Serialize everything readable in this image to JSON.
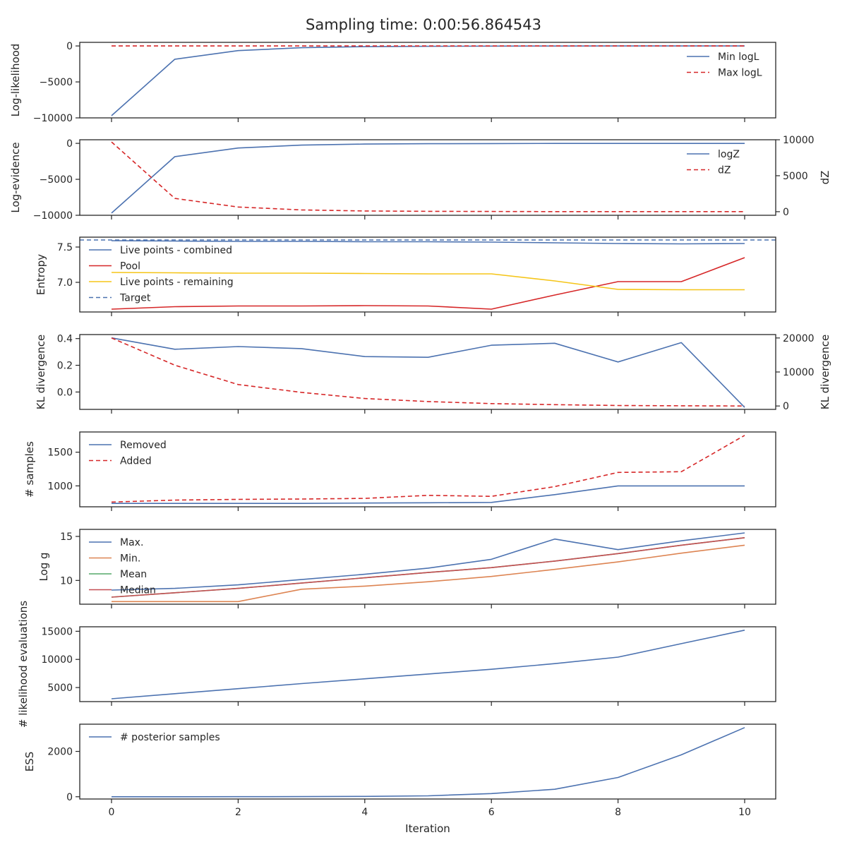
{
  "title": "Sampling time: 0:00:56.864543",
  "xlabel": "Iteration",
  "x_ticks": [
    0,
    2,
    4,
    6,
    8,
    10
  ],
  "colors": {
    "blue": "#4c72b0",
    "red": "#d62728",
    "yellow": "#f5c518",
    "orange": "#dd8452",
    "green": "#55a868",
    "brown_red": "#c44e52",
    "axis": "#262626"
  },
  "chart_data": [
    {
      "type": "line",
      "ylabel": "Log-likelihood",
      "ylim": [
        -10000,
        500
      ],
      "yticks": [
        0,
        -5000,
        -10000
      ],
      "ytick_labels": [
        "0",
        "−5000",
        "−10000"
      ],
      "legend_loc": "upper-right",
      "series": [
        {
          "name": "Min logL",
          "style": "solid",
          "color": "#4c72b0",
          "x": [
            0,
            1,
            2,
            3,
            4,
            5,
            6,
            7,
            8,
            9,
            10
          ],
          "y": [
            -9700,
            -1850,
            -650,
            -250,
            -100,
            -50,
            -20,
            -10,
            -5,
            -3,
            -1
          ]
        },
        {
          "name": "Max logL",
          "style": "dashed",
          "color": "#d62728",
          "x": [
            0,
            1,
            2,
            3,
            4,
            5,
            6,
            7,
            8,
            9,
            10
          ],
          "y": [
            -5,
            -3,
            -2,
            -2,
            -1,
            -1,
            -1,
            -1,
            -1,
            -1,
            -1
          ]
        }
      ]
    },
    {
      "type": "line",
      "ylabel": "Log-evidence",
      "ylabel_right": "dZ",
      "ylim": [
        -10000,
        500
      ],
      "yticks": [
        0,
        -5000,
        -10000
      ],
      "ytick_labels": [
        "0",
        "−5000",
        "−10000"
      ],
      "ylim_right": [
        -500,
        10000
      ],
      "yticks_right": [
        10000,
        5000,
        0
      ],
      "ytick_labels_right": [
        "10000",
        "5000",
        "0"
      ],
      "legend_loc": "upper-right",
      "series": [
        {
          "name": "logZ",
          "style": "solid",
          "color": "#4c72b0",
          "axis": "left",
          "x": [
            0,
            1,
            2,
            3,
            4,
            5,
            6,
            7,
            8,
            9,
            10
          ],
          "y": [
            -9700,
            -1850,
            -650,
            -250,
            -100,
            -50,
            -25,
            -15,
            -10,
            -8,
            -7
          ]
        },
        {
          "name": "dZ",
          "style": "dashed",
          "color": "#d62728",
          "axis": "right",
          "x": [
            0,
            1,
            2,
            3,
            4,
            5,
            6,
            7,
            8,
            9,
            10
          ],
          "y": [
            9700,
            1850,
            650,
            250,
            100,
            50,
            25,
            15,
            10,
            8,
            7
          ]
        }
      ]
    },
    {
      "type": "line",
      "ylabel": "Entropy",
      "ylim": [
        6.58,
        7.64
      ],
      "yticks": [
        7.5,
        7.0
      ],
      "ytick_labels": [
        "7.5",
        "7.0"
      ],
      "legend_loc": "upper-left",
      "series": [
        {
          "name": "Live points - combined",
          "style": "solid",
          "color": "#4c72b0",
          "x": [
            0,
            1,
            2,
            3,
            4,
            5,
            6,
            7,
            8,
            9,
            10
          ],
          "y": [
            7.59,
            7.585,
            7.58,
            7.58,
            7.575,
            7.575,
            7.57,
            7.56,
            7.55,
            7.545,
            7.55
          ]
        },
        {
          "name": "Pool",
          "style": "solid",
          "color": "#d62728",
          "x": [
            0,
            1,
            2,
            3,
            4,
            5,
            6,
            7,
            8,
            9,
            10
          ],
          "y": [
            6.62,
            6.655,
            6.665,
            6.665,
            6.67,
            6.665,
            6.62,
            6.82,
            7.01,
            7.01,
            7.35
          ]
        },
        {
          "name": "Live points - remaining",
          "style": "solid",
          "color": "#f5c518",
          "x": [
            0,
            1,
            2,
            3,
            4,
            5,
            6,
            7,
            8,
            9,
            10
          ],
          "y": [
            7.14,
            7.135,
            7.13,
            7.13,
            7.125,
            7.12,
            7.12,
            7.02,
            6.9,
            6.895,
            6.895
          ]
        },
        {
          "name": "Target",
          "style": "dashed",
          "color": "#4c72b0",
          "hline": 7.6
        }
      ]
    },
    {
      "type": "line",
      "ylabel": "KL divergence",
      "ylabel_right": "KL divergence",
      "ylim": [
        -0.13,
        0.43
      ],
      "yticks": [
        0.4,
        0.2,
        0.0
      ],
      "ytick_labels": [
        "0.4",
        "0.2",
        "0.0"
      ],
      "ylim_right": [
        -1000,
        21000
      ],
      "yticks_right": [
        20000,
        10000,
        0
      ],
      "ytick_labels_right": [
        "20000",
        "10000",
        "0"
      ],
      "legend_loc": "none",
      "series": [
        {
          "name": "",
          "style": "solid",
          "color": "#4c72b0",
          "axis": "left",
          "x": [
            0,
            1,
            2,
            3,
            4,
            5,
            6,
            7,
            8,
            9,
            10
          ],
          "y": [
            0.405,
            0.32,
            0.34,
            0.325,
            0.265,
            0.26,
            0.35,
            0.365,
            0.225,
            0.37,
            -0.115
          ]
        },
        {
          "name": "",
          "style": "dashed",
          "color": "#d62728",
          "axis": "right",
          "x": [
            0,
            1,
            2,
            3,
            4,
            5,
            6,
            7,
            8,
            9,
            10
          ],
          "y": [
            20000,
            12000,
            6300,
            4000,
            2200,
            1300,
            700,
            400,
            150,
            50,
            0
          ]
        }
      ]
    },
    {
      "type": "line",
      "ylabel": "# samples",
      "ylim": [
        690,
        1800
      ],
      "yticks": [
        1500,
        1000
      ],
      "ytick_labels": [
        "1500",
        "1000"
      ],
      "legend_loc": "upper-left",
      "series": [
        {
          "name": "Removed",
          "style": "solid",
          "color": "#4c72b0",
          "x": [
            0,
            1,
            2,
            3,
            4,
            5,
            6,
            7,
            8,
            9,
            10
          ],
          "y": [
            740,
            740,
            740,
            740,
            745,
            750,
            755,
            870,
            1000,
            1000,
            1000
          ]
        },
        {
          "name": "Added",
          "style": "dashed",
          "color": "#d62728",
          "x": [
            0,
            1,
            2,
            3,
            4,
            5,
            6,
            7,
            8,
            9,
            10
          ],
          "y": [
            760,
            790,
            800,
            805,
            815,
            860,
            845,
            990,
            1200,
            1210,
            1750
          ]
        }
      ]
    },
    {
      "type": "line",
      "ylabel": "Log g",
      "ylim": [
        7.3,
        15.8
      ],
      "yticks": [
        15,
        10
      ],
      "ytick_labels": [
        "15",
        "10"
      ],
      "legend_loc": "upper-left",
      "series": [
        {
          "name": "Max.",
          "style": "solid",
          "color": "#4c72b0",
          "x": [
            0,
            1,
            2,
            3,
            4,
            5,
            6,
            7,
            8,
            9,
            10
          ],
          "y": [
            8.9,
            9.1,
            9.5,
            10.1,
            10.7,
            11.4,
            12.4,
            14.7,
            13.5,
            14.5,
            15.4
          ]
        },
        {
          "name": "Min.",
          "style": "solid",
          "color": "#dd8452",
          "x": [
            0,
            1,
            2,
            3,
            4,
            5,
            6,
            7,
            8,
            9,
            10
          ],
          "y": [
            7.6,
            7.6,
            7.6,
            9.0,
            9.35,
            9.85,
            10.45,
            11.25,
            12.1,
            13.1,
            14.0
          ]
        },
        {
          "name": "Mean",
          "style": "solid",
          "color": "#55a868",
          "x": [
            0,
            1,
            2,
            3,
            4,
            5,
            6,
            7,
            8,
            9,
            10
          ],
          "y": [
            8.1,
            8.6,
            9.1,
            9.7,
            10.3,
            10.9,
            11.45,
            12.2,
            13.05,
            14.0,
            14.85
          ]
        },
        {
          "name": "Median",
          "style": "solid",
          "color": "#c44e52",
          "x": [
            0,
            1,
            2,
            3,
            4,
            5,
            6,
            7,
            8,
            9,
            10
          ],
          "y": [
            8.1,
            8.6,
            9.1,
            9.7,
            10.3,
            10.9,
            11.45,
            12.2,
            13.05,
            14.0,
            14.85
          ]
        }
      ]
    },
    {
      "type": "line",
      "ylabel": "# likelihood evaluations",
      "ylim": [
        2500,
        15800
      ],
      "yticks": [
        15000,
        10000,
        5000
      ],
      "ytick_labels": [
        "15000",
        "10000",
        "5000"
      ],
      "legend_loc": "none",
      "series": [
        {
          "name": "",
          "style": "solid",
          "color": "#4c72b0",
          "x": [
            0,
            1,
            2,
            3,
            4,
            5,
            6,
            7,
            8,
            9,
            10
          ],
          "y": [
            3000,
            3900,
            4800,
            5700,
            6550,
            7400,
            8250,
            9250,
            10400,
            12800,
            15200
          ]
        }
      ]
    },
    {
      "type": "line",
      "ylabel": "ESS",
      "ylim": [
        -100,
        3200
      ],
      "yticks": [
        2000,
        0
      ],
      "ytick_labels": [
        "2000",
        "0"
      ],
      "legend_loc": "upper-left",
      "series": [
        {
          "name": "# posterior samples",
          "style": "solid",
          "color": "#4c72b0",
          "x": [
            0,
            1,
            2,
            3,
            4,
            5,
            6,
            7,
            8,
            9,
            10
          ],
          "y": [
            0,
            0,
            2,
            5,
            15,
            40,
            140,
            330,
            850,
            1850,
            3050
          ]
        }
      ]
    }
  ]
}
